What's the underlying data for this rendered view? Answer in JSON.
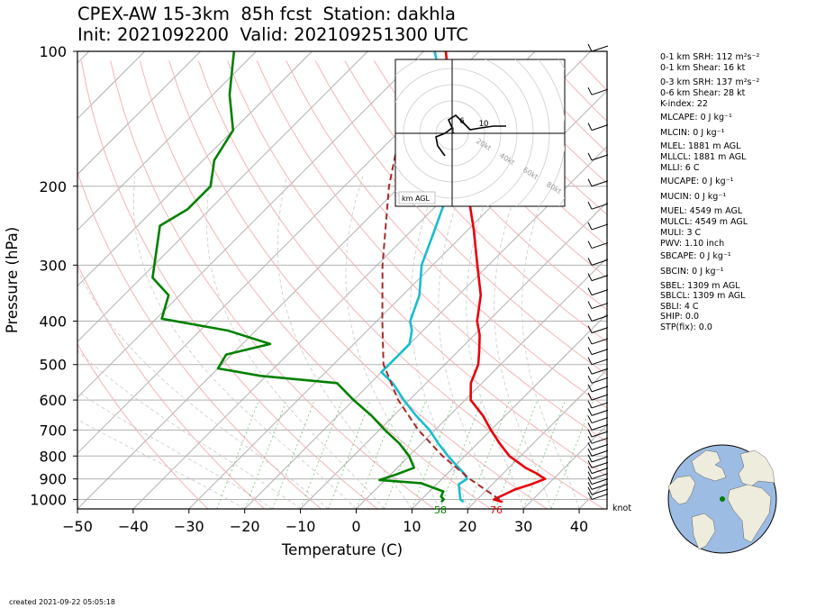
{
  "title_line1": "CPEX-AW 15-3km  85h fcst  Station: dakhla",
  "title_line2": "Init: 2021092200  Valid: 202109251300 UTC",
  "chart_data": {
    "type": "line",
    "subtype": "skew-T log-P sounding",
    "xlabel": "Temperature (C)",
    "ylabel": "Pressure (hPa)",
    "xlim": [
      -50,
      45
    ],
    "ylim": [
      1050,
      100
    ],
    "yscale": "log",
    "x_ticks": [
      "−50",
      "−40",
      "−30",
      "−20",
      "−10",
      "0",
      "10",
      "20",
      "30",
      "40"
    ],
    "y_ticks": [
      100,
      200,
      300,
      400,
      500,
      600,
      700,
      800,
      900,
      1000
    ],
    "series": [
      {
        "role": "temperature",
        "color": "#e8000b",
        "points": [
          [
            1013,
            25
          ],
          [
            1000,
            23
          ],
          [
            975,
            24
          ],
          [
            950,
            25
          ],
          [
            925,
            27
          ],
          [
            900,
            28.5
          ],
          [
            875,
            26
          ],
          [
            850,
            23
          ],
          [
            800,
            18
          ],
          [
            750,
            14
          ],
          [
            700,
            10
          ],
          [
            650,
            6
          ],
          [
            600,
            1
          ],
          [
            550,
            -2
          ],
          [
            500,
            -4
          ],
          [
            470,
            -6
          ],
          [
            430,
            -9
          ],
          [
            400,
            -12
          ],
          [
            350,
            -16
          ],
          [
            300,
            -22
          ],
          [
            250,
            -29
          ],
          [
            200,
            -38
          ],
          [
            175,
            -45
          ],
          [
            150,
            -51
          ],
          [
            130,
            -56
          ],
          [
            100,
            -66
          ]
        ]
      },
      {
        "role": "dewpoint",
        "color": "#008000",
        "points": [
          [
            1013,
            14
          ],
          [
            1000,
            14
          ],
          [
            985,
            13
          ],
          [
            960,
            12.5
          ],
          [
            920,
            7
          ],
          [
            905,
            -1
          ],
          [
            880,
            1
          ],
          [
            850,
            3
          ],
          [
            800,
            0
          ],
          [
            750,
            -4
          ],
          [
            700,
            -9
          ],
          [
            650,
            -14
          ],
          [
            600,
            -20
          ],
          [
            550,
            -26
          ],
          [
            530,
            -41
          ],
          [
            510,
            -50
          ],
          [
            475,
            -51
          ],
          [
            450,
            -45
          ],
          [
            420,
            -55
          ],
          [
            395,
            -69
          ],
          [
            350,
            -72
          ],
          [
            320,
            -78
          ],
          [
            280,
            -82
          ],
          [
            245,
            -86
          ],
          [
            225,
            -84
          ],
          [
            200,
            -84
          ],
          [
            175,
            -88
          ],
          [
            150,
            -90
          ],
          [
            125,
            -97
          ],
          [
            100,
            -104
          ]
        ]
      },
      {
        "role": "wetbulb",
        "color": "#17becf",
        "points": [
          [
            1013,
            18
          ],
          [
            1000,
            17
          ],
          [
            950,
            15
          ],
          [
            925,
            14
          ],
          [
            900,
            14.5
          ],
          [
            875,
            13
          ],
          [
            850,
            11
          ],
          [
            800,
            7
          ],
          [
            750,
            3
          ],
          [
            700,
            -1
          ],
          [
            650,
            -6
          ],
          [
            600,
            -11
          ],
          [
            550,
            -16
          ],
          [
            520,
            -20
          ],
          [
            480,
            -20
          ],
          [
            450,
            -20
          ],
          [
            420,
            -22
          ],
          [
            400,
            -24
          ],
          [
            350,
            -27
          ],
          [
            300,
            -32
          ],
          [
            250,
            -36
          ],
          [
            200,
            -41
          ],
          [
            175,
            -47
          ],
          [
            150,
            -52
          ],
          [
            130,
            -57
          ],
          [
            100,
            -68
          ]
        ]
      },
      {
        "role": "parcel",
        "color": "#a52a2a",
        "points": [
          [
            1000,
            24
          ],
          [
            900,
            15
          ],
          [
            800,
            6
          ],
          [
            700,
            -3
          ],
          [
            600,
            -12
          ],
          [
            500,
            -21
          ],
          [
            400,
            -29
          ],
          [
            300,
            -39
          ],
          [
            200,
            -52
          ],
          [
            150,
            -60
          ],
          [
            120,
            -68
          ]
        ]
      }
    ],
    "surface_labels": {
      "dewpoint": "58",
      "temperature": "76"
    },
    "wind_units": "knot",
    "hodograph": {
      "ring_labels": [
        "20kt",
        "40kt",
        "60kt",
        "80kt"
      ],
      "height_labels": [
        "1",
        "6",
        "10"
      ],
      "legend": "km AGL"
    }
  },
  "indices": [
    "0-1 km SRH: 112 m²s⁻²",
    "0-1 km Shear: 16 kt",
    "0-3 km SRH: 137 m²s⁻²",
    "0-6 km Shear: 28 kt",
    "K-index: 22",
    "MLCAPE: 0 J kg⁻¹",
    "MLCIN: 0 J kg⁻¹",
    "MLEL: 1881 m AGL",
    "MLLCL: 1881 m AGL",
    "MLLI: 6 C",
    "MUCAPE: 0 J kg⁻¹",
    "MUCIN: 0 J kg⁻¹",
    "MUEL: 4549 m AGL",
    "MULCL: 4549 m AGL",
    "MULI: 3 C",
    "PWV: 1.10 inch",
    "SBCAPE: 0 J kg⁻¹",
    "SBCIN: 0 J kg⁻¹",
    "SBEL: 1309 m AGL",
    "SBLCL: 1309 m AGL",
    "SBLI: 4 C",
    "SHIP: 0.0",
    "STP(fix): 0.0"
  ],
  "created": "created 2021-09-22 05:05:18",
  "colors": {
    "temperature": "#e8000b",
    "dewpoint": "#008000",
    "wetbulb": "#17becf",
    "parcel": "#a52a2a",
    "land": "#eeecdc",
    "ocean": "#9dbce3"
  }
}
